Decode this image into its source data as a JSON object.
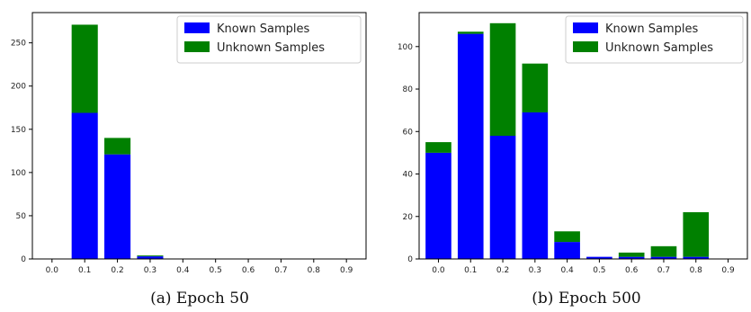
{
  "chart_data": [
    {
      "type": "bar",
      "stacked": true,
      "caption": "(a) Epoch 50",
      "categories": [
        "0.0",
        "0.1",
        "0.2",
        "0.3",
        "0.4",
        "0.5",
        "0.6",
        "0.7",
        "0.8",
        "0.9"
      ],
      "series": [
        {
          "name": "Known Samples",
          "color": "#0000ff",
          "values": [
            0,
            169,
            121,
            3,
            0,
            0,
            0,
            0,
            0,
            0
          ]
        },
        {
          "name": "Unknown Samples",
          "color": "#008000",
          "values": [
            0,
            102,
            19,
            1,
            0,
            0,
            0,
            0,
            0,
            0
          ]
        }
      ],
      "yticks": [
        0,
        50,
        100,
        150,
        200,
        250
      ],
      "ylim": [
        0,
        285
      ],
      "legend": "top-right",
      "grid": false
    },
    {
      "type": "bar",
      "stacked": true,
      "caption": "(b) Epoch 500",
      "categories": [
        "0.0",
        "0.1",
        "0.2",
        "0.3",
        "0.4",
        "0.5",
        "0.6",
        "0.7",
        "0.8",
        "0.9"
      ],
      "series": [
        {
          "name": "Known Samples",
          "color": "#0000ff",
          "values": [
            50,
            106,
            58,
            69,
            8,
            1,
            1,
            1,
            1,
            0
          ]
        },
        {
          "name": "Unknown Samples",
          "color": "#008000",
          "values": [
            5,
            1,
            53,
            23,
            5,
            0,
            2,
            5,
            21,
            0
          ]
        }
      ],
      "yticks": [
        0,
        20,
        40,
        60,
        80,
        100
      ],
      "ylim": [
        0,
        116
      ],
      "legend": "top-right",
      "grid": false
    }
  ]
}
